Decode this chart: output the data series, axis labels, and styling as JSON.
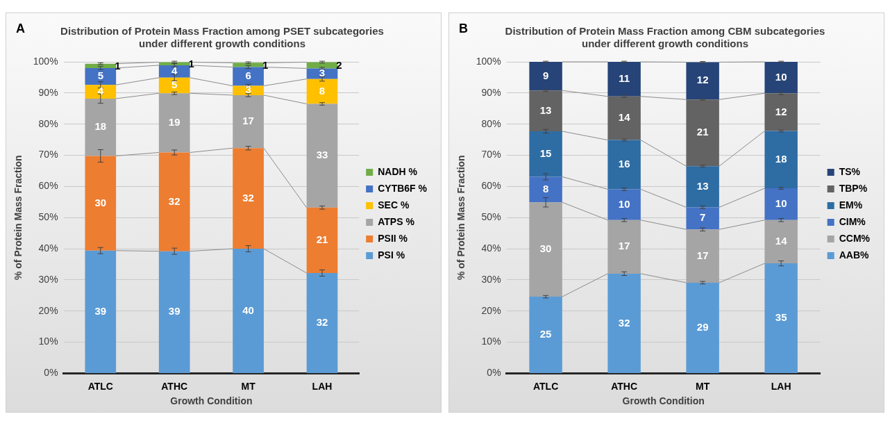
{
  "chart_data": [
    {
      "type": "bar",
      "stacked": true,
      "title": "Distribution of Protein Mass Fraction among PSET subcategories\nunder different growth conditions",
      "annotations": [
        "A"
      ],
      "xlabel": "Growth Condition",
      "ylabel": "% of Protein Mass Fraction",
      "categories": [
        "ATLC",
        "ATHC",
        "MT",
        "LAH"
      ],
      "ylim": [
        0,
        100
      ],
      "yticks": [
        {
          "value": 0,
          "label": "0%"
        },
        {
          "value": 10,
          "label": "10%"
        },
        {
          "value": 20,
          "label": "20%"
        },
        {
          "value": 30,
          "label": "30%"
        },
        {
          "value": 40,
          "label": "40%"
        },
        {
          "value": 50,
          "label": "50%"
        },
        {
          "value": 60,
          "label": "60%"
        },
        {
          "value": 70,
          "label": "70%"
        },
        {
          "value": 80,
          "label": "80%"
        },
        {
          "value": 90,
          "label": "90%"
        },
        {
          "value": 100,
          "label": "100%"
        }
      ],
      "grid": "y",
      "legend": "right",
      "series": [
        {
          "name": "PSI %",
          "color": "#5b9bd5",
          "values": [
            39.4,
            39.2,
            40.0,
            32.2
          ],
          "value_labels": [
            "39",
            "39",
            "40",
            "32"
          ],
          "errors": [
            1,
            1,
            1,
            1
          ]
        },
        {
          "name": "PSII %",
          "color": "#ed7d31",
          "values": [
            30.4,
            31.7,
            32.3,
            21.0
          ],
          "value_labels": [
            "30",
            "32",
            "32",
            "21"
          ],
          "errors": [
            2,
            0.8,
            0.6,
            0.5
          ]
        },
        {
          "name": "ATPS %",
          "color": "#a5a5a5",
          "values": [
            18.4,
            19.0,
            17.0,
            33.3
          ],
          "value_labels": [
            "18",
            "19",
            "17",
            "33"
          ],
          "errors": [
            1.5,
            0.4,
            0.5,
            0.4
          ]
        },
        {
          "name": "SEC %",
          "color": "#ffc000",
          "values": [
            4.4,
            5.0,
            3.0,
            8.0
          ],
          "value_labels": [
            "4",
            "5",
            "3",
            "8"
          ],
          "errors": [
            1,
            1,
            0.5,
            0.7
          ]
        },
        {
          "name": "CYTB6F %",
          "color": "#4472c4",
          "values": [
            5.4,
            4.0,
            6.0,
            3.4
          ],
          "value_labels": [
            "5",
            "4",
            "6",
            "3"
          ],
          "errors": [
            0.5,
            0.5,
            0.5,
            0.3
          ]
        },
        {
          "name": "NADH %",
          "color": "#70ad47",
          "values": [
            1.4,
            1.0,
            1.4,
            2.0
          ],
          "value_labels": [
            "1",
            "1",
            "1",
            "2"
          ],
          "errors": [
            0.3,
            0.3,
            0.3,
            0.3
          ]
        }
      ]
    },
    {
      "type": "bar",
      "stacked": true,
      "title": "Distribution of Protein Mass Fraction among CBM subcategories\nunder different growth conditions",
      "annotations": [
        "B"
      ],
      "xlabel": "Growth Condition",
      "ylabel": "% of Protein Mass Fraction",
      "categories": [
        "ATLC",
        "ATHC",
        "MT",
        "LAH"
      ],
      "ylim": [
        0,
        100
      ],
      "yticks": [
        {
          "value": 0,
          "label": "0%"
        },
        {
          "value": 10,
          "label": "10%"
        },
        {
          "value": 20,
          "label": "20%"
        },
        {
          "value": 30,
          "label": "30%"
        },
        {
          "value": 40,
          "label": "40%"
        },
        {
          "value": 50,
          "label": "50%"
        },
        {
          "value": 60,
          "label": "60%"
        },
        {
          "value": 70,
          "label": "70%"
        },
        {
          "value": 80,
          "label": "80%"
        },
        {
          "value": 90,
          "label": "90%"
        },
        {
          "value": 100,
          "label": "100%"
        }
      ],
      "grid": "y",
      "legend": "right",
      "series": [
        {
          "name": "AAB%",
          "color": "#5b9bd5",
          "values": [
            24.6,
            32.0,
            29.1,
            35.3
          ],
          "value_labels": [
            "25",
            "32",
            "29",
            "35"
          ],
          "errors": [
            0.4,
            0.6,
            0.4,
            0.8
          ]
        },
        {
          "name": "CCM%",
          "color": "#a5a5a5",
          "values": [
            30.3,
            17.2,
            17.1,
            13.9
          ],
          "value_labels": [
            "30",
            "17",
            "17",
            "14"
          ],
          "errors": [
            1.5,
            0.5,
            0.5,
            0.5
          ]
        },
        {
          "name": "CIM%",
          "color": "#4472c4",
          "values": [
            8.2,
            9.9,
            7.1,
            10.2
          ],
          "value_labels": [
            "8",
            "10",
            "7",
            "10"
          ],
          "errors": [
            1,
            0.4,
            0.4,
            0.3
          ]
        },
        {
          "name": "EM%",
          "color": "#2e6ca4",
          "values": [
            14.6,
            15.8,
            13.2,
            18.4
          ],
          "value_labels": [
            "15",
            "16",
            "13",
            "18"
          ],
          "errors": [
            0.6,
            0.3,
            0.3,
            0.3
          ]
        },
        {
          "name": "TBP%",
          "color": "#636363",
          "values": [
            13.1,
            14.0,
            21.4,
            12.1
          ],
          "value_labels": [
            "13",
            "14",
            "21",
            "12"
          ],
          "errors": [
            0.3,
            0.3,
            0.2,
            0.4
          ]
        },
        {
          "name": "TS%",
          "color": "#264478",
          "values": [
            9.2,
            11.1,
            12.0,
            10.1
          ],
          "value_labels": [
            "9",
            "11",
            "12",
            "10"
          ],
          "errors": [
            0.2,
            0.2,
            0.2,
            0.2
          ]
        }
      ]
    }
  ]
}
